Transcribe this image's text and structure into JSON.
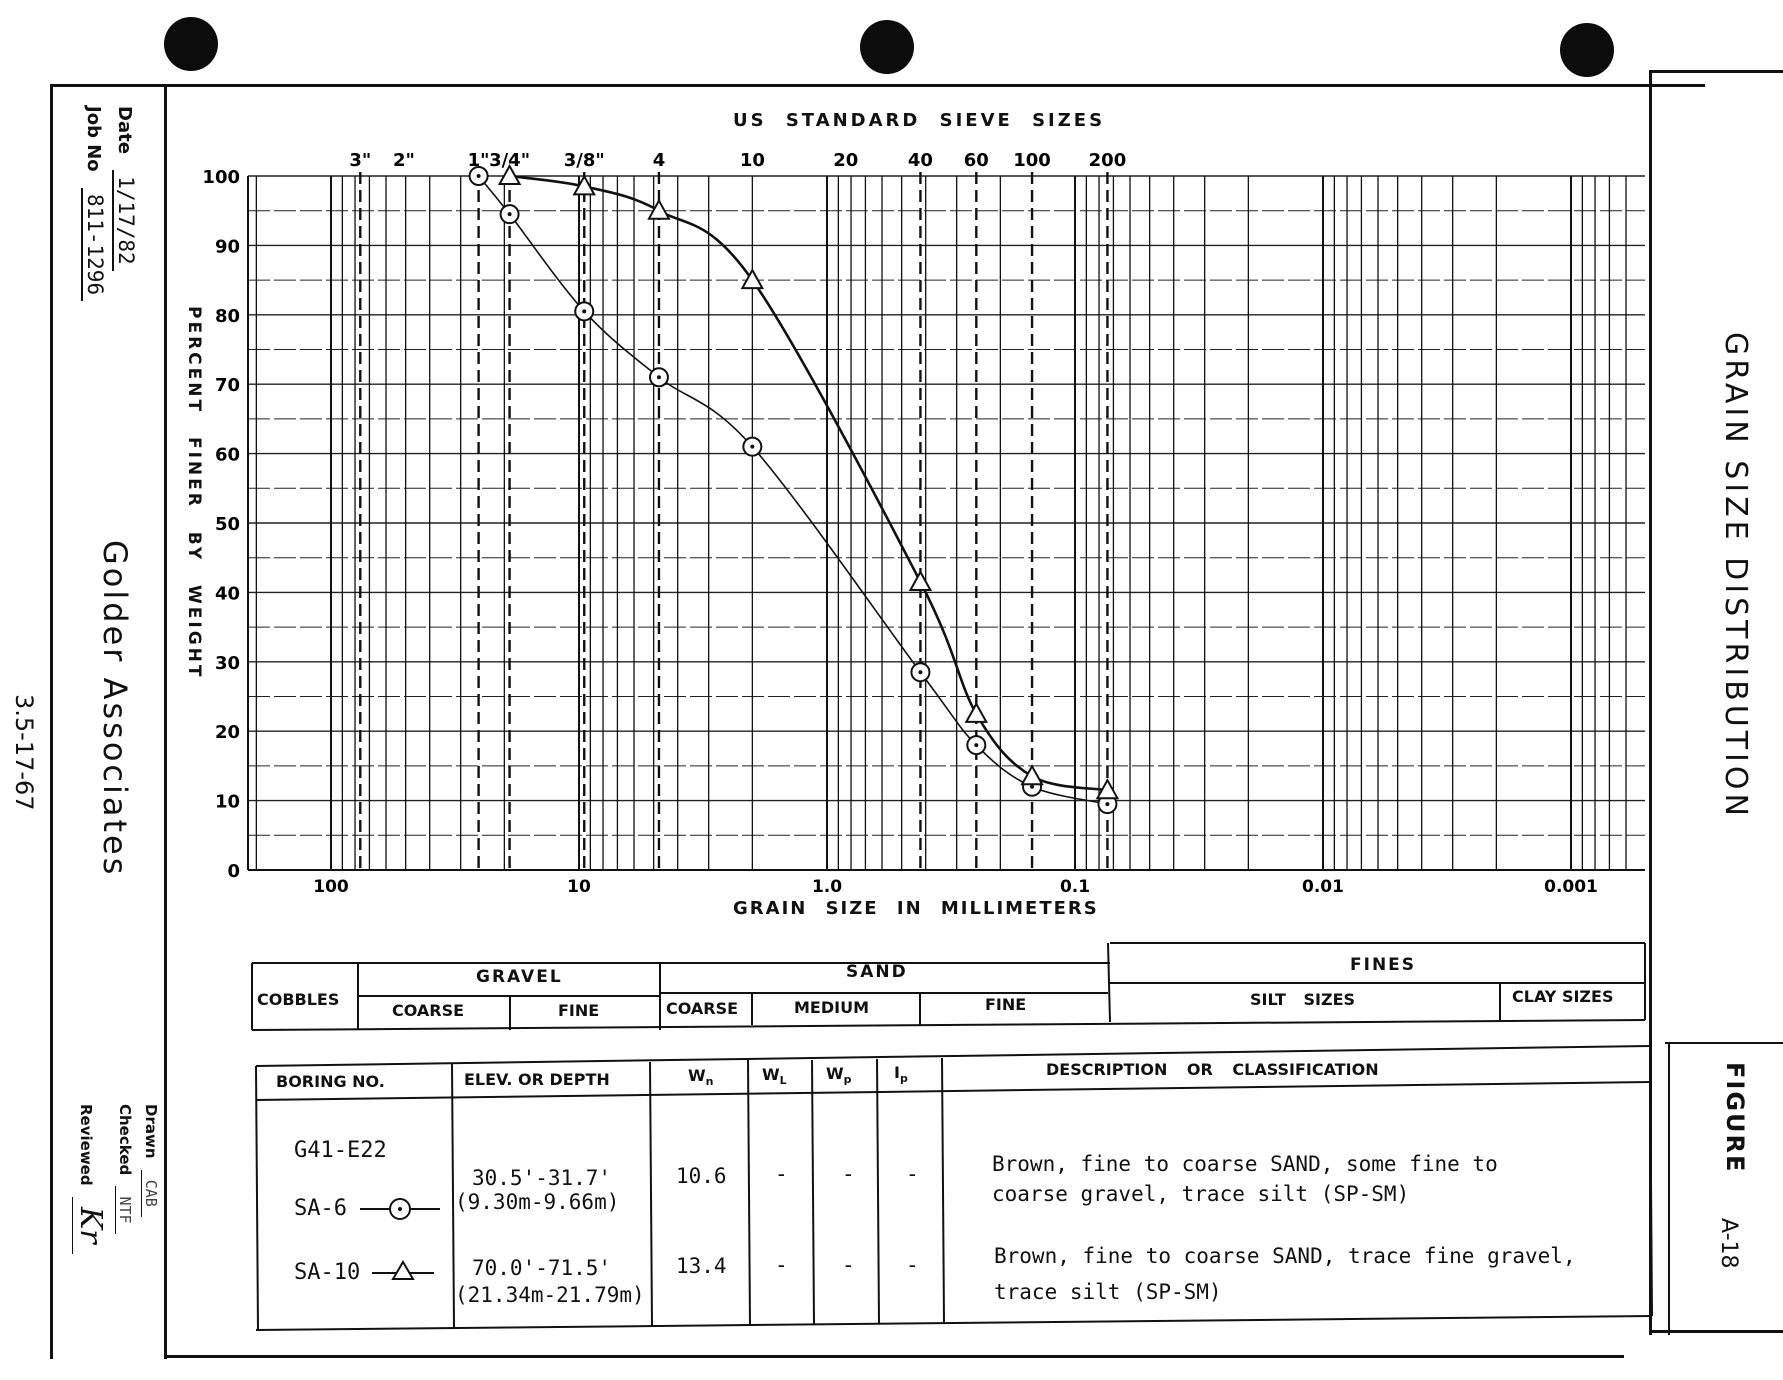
{
  "margin_left": {
    "date_label": "Date",
    "date_value": "1/17/82",
    "job_label": "Job No",
    "job_value": "811-1296",
    "company": "Golder Associates",
    "doc_number": "3.5-17-67",
    "drawn_label": "Drawn",
    "drawn_value": "CAB",
    "checked_label": "Checked",
    "checked_value": "NTF",
    "reviewed_label": "Reviewed",
    "reviewed_value": "Kr"
  },
  "margin_right": {
    "title": "GRAIN SIZE DISTRIBUTION",
    "figure_label": "FIGURE",
    "figure_number": "A-18"
  },
  "chart_data": {
    "type": "line",
    "top_title": "US STANDARD SIEVE SIZES",
    "sieve_labels": [
      "3\"",
      "2\"",
      "1\"",
      "3/4\"",
      "3/8\"",
      "4",
      "10",
      "20",
      "40",
      "60",
      "100",
      "200"
    ],
    "sieve_sizes_mm": [
      76.2,
      50.8,
      25.4,
      19.05,
      9.525,
      4.76,
      2.0,
      0.84,
      0.42,
      0.25,
      0.149,
      0.074
    ],
    "dashed_sieves_mm": [
      76.2,
      25.4,
      19.05,
      9.525,
      4.76,
      0.42,
      0.25,
      0.149,
      0.074
    ],
    "xlabel": "GRAIN SIZE IN MILLIMETERS",
    "ylabel": "PERCENT FINER BY WEIGHT",
    "x_scale": "log",
    "x_reversed": true,
    "xlim": [
      200,
      0.0005
    ],
    "ylim": [
      0,
      100
    ],
    "x_ticks": [
      {
        "value": 100,
        "label": "100"
      },
      {
        "value": 10,
        "label": "10"
      },
      {
        "value": 1,
        "label": "1.0"
      },
      {
        "value": 0.1,
        "label": "0.1"
      },
      {
        "value": 0.01,
        "label": "0.01"
      },
      {
        "value": 0.001,
        "label": "0.001"
      }
    ],
    "y_ticks": [
      0,
      10,
      20,
      30,
      40,
      50,
      60,
      70,
      80,
      90,
      100
    ],
    "series": [
      {
        "name": "SA-6",
        "marker": "circle",
        "x": [
          25.4,
          19.05,
          9.525,
          4.76,
          2.0,
          0.42,
          0.25,
          0.149,
          0.074
        ],
        "y": [
          100,
          94.5,
          80.5,
          71,
          61,
          28.5,
          18,
          12,
          9.5
        ]
      },
      {
        "name": "SA-10",
        "marker": "triangle",
        "x": [
          19.05,
          9.525,
          4.76,
          2.0,
          0.42,
          0.25,
          0.149,
          0.074
        ],
        "y": [
          100,
          98.5,
          95,
          85,
          41.5,
          22.5,
          13.5,
          11.5
        ]
      }
    ]
  },
  "classification": {
    "cobbles": "COBBLES",
    "gravel": "GRAVEL",
    "gravel_coarse": "COARSE",
    "gravel_fine": "FINE",
    "sand": "SAND",
    "sand_coarse": "COARSE",
    "sand_medium": "MEDIUM",
    "sand_fine": "FINE",
    "fines": "FINES",
    "silt": "SILT SIZES",
    "clay": "CLAY SIZES"
  },
  "samples": {
    "headers": {
      "boring": "BORING NO.",
      "elev": "ELEV. OR DEPTH",
      "wn": "W",
      "wn_sub": "n",
      "wl": "W",
      "wl_sub": "L",
      "wp": "W",
      "wp_sub": "p",
      "ip": "I",
      "ip_sub": "p",
      "desc": "DESCRIPTION OR CLASSIFICATION"
    },
    "boring_id": "G41-E22",
    "rows": [
      {
        "sample": "SA-6",
        "elev1": "30.5'-31.7'",
        "elev2": "(9.30m-9.66m)",
        "wn": "10.6",
        "wl": "-",
        "wp": "-",
        "ip": "-",
        "desc1": "Brown, fine to coarse SAND, some fine to",
        "desc2": "coarse gravel, trace silt (SP-SM)"
      },
      {
        "sample": "SA-10",
        "elev1": "70.0'-71.5'",
        "elev2": "(21.34m-21.79m)",
        "wn": "13.4",
        "wl": "-",
        "wp": "-",
        "ip": "-",
        "desc1": "Brown, fine to coarse SAND, trace fine gravel,",
        "desc2": "trace silt  (SP-SM)"
      }
    ]
  }
}
